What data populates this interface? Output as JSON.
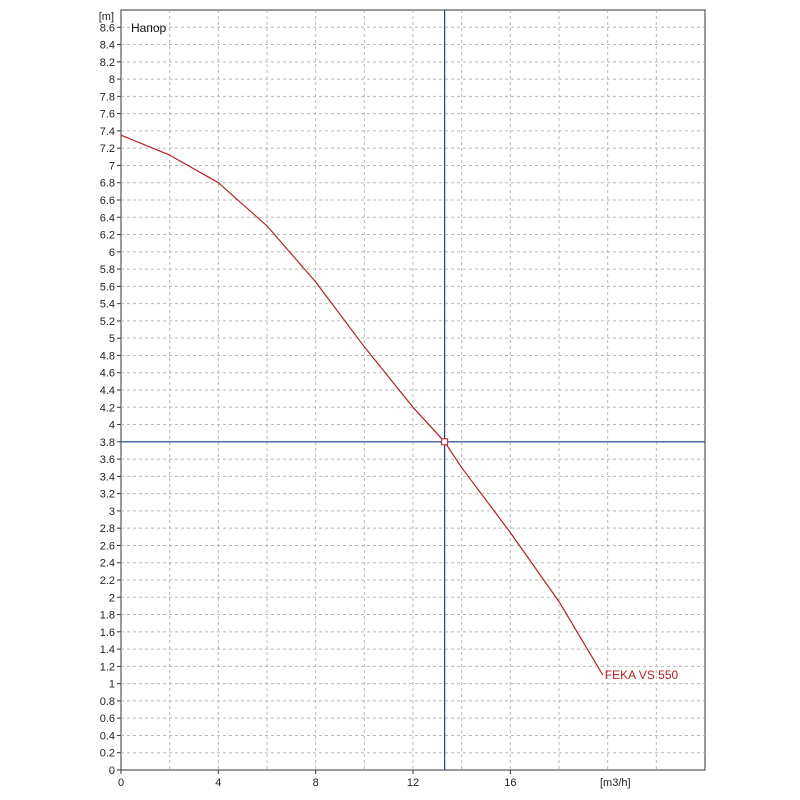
{
  "chart_data": {
    "type": "line",
    "title": "Напор",
    "xlabel": "[m3/h]",
    "ylabel": "[m]",
    "xlim": [
      0,
      24
    ],
    "ylim": [
      0,
      8.8
    ],
    "grid": true,
    "x_tick_labels": [
      "0",
      "4",
      "8",
      "12",
      "16"
    ],
    "x_ticks": [
      0,
      4,
      8,
      12,
      16
    ],
    "y_ticks": [
      0,
      0.2,
      0.4,
      0.6,
      0.8,
      1,
      1.2,
      1.4,
      1.6,
      1.8,
      2,
      2.2,
      2.4,
      2.6,
      2.8,
      3,
      3.2,
      3.4,
      3.6,
      3.8,
      4,
      4.2,
      4.4,
      4.6,
      4.8,
      5,
      5.2,
      5.4,
      5.6,
      5.8,
      6,
      6.2,
      6.4,
      6.6,
      6.8,
      7,
      7.2,
      7.4,
      7.6,
      7.8,
      8,
      8.2,
      8.4,
      8.6
    ],
    "y_tick_labels": [
      "0",
      "0.2",
      "0.4",
      "0.6",
      "0.8",
      "1",
      "1.2",
      "1.4",
      "1.6",
      "1.8",
      "2",
      "2.2",
      "2.4",
      "2.6",
      "2.8",
      "3",
      "3.2",
      "3.4",
      "3.6",
      "3.8",
      "4",
      "4.2",
      "4.4",
      "4.6",
      "4.8",
      "5",
      "5.2",
      "5.4",
      "5.6",
      "5.8",
      "6",
      "6.2",
      "6.4",
      "6.6",
      "6.8",
      "7",
      "7.2",
      "7.4",
      "7.6",
      "7.8",
      "8",
      "8.2",
      "8.4",
      "8.6"
    ],
    "series": [
      {
        "name": "FEKA VS 550",
        "color": "#b22222",
        "x": [
          0,
          2,
          4,
          6,
          8,
          10,
          12,
          13.3,
          14,
          16,
          18,
          19.8
        ],
        "y": [
          7.35,
          7.12,
          6.8,
          6.3,
          5.65,
          4.9,
          4.2,
          3.8,
          3.5,
          2.75,
          1.95,
          1.1
        ]
      }
    ],
    "operating_point": {
      "x": 13.3,
      "y": 3.8
    },
    "crosshair_color": "#1f3f8f"
  }
}
